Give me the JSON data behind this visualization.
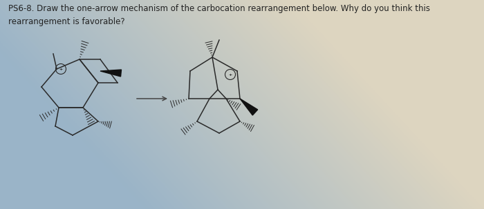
{
  "title_line1": "PS6-8. Draw the one-arrow mechanism of the carbocation rearrangement below. Why do you think this",
  "title_line2": "rearrangement is favorable?",
  "title_fontsize": 8.5,
  "bg_left": "#9ab4c8",
  "bg_right": "#ddd5c0",
  "line_color": "#2a2a2a",
  "arrow_color": "#555555",
  "fig_width": 7.0,
  "fig_height": 3.03
}
